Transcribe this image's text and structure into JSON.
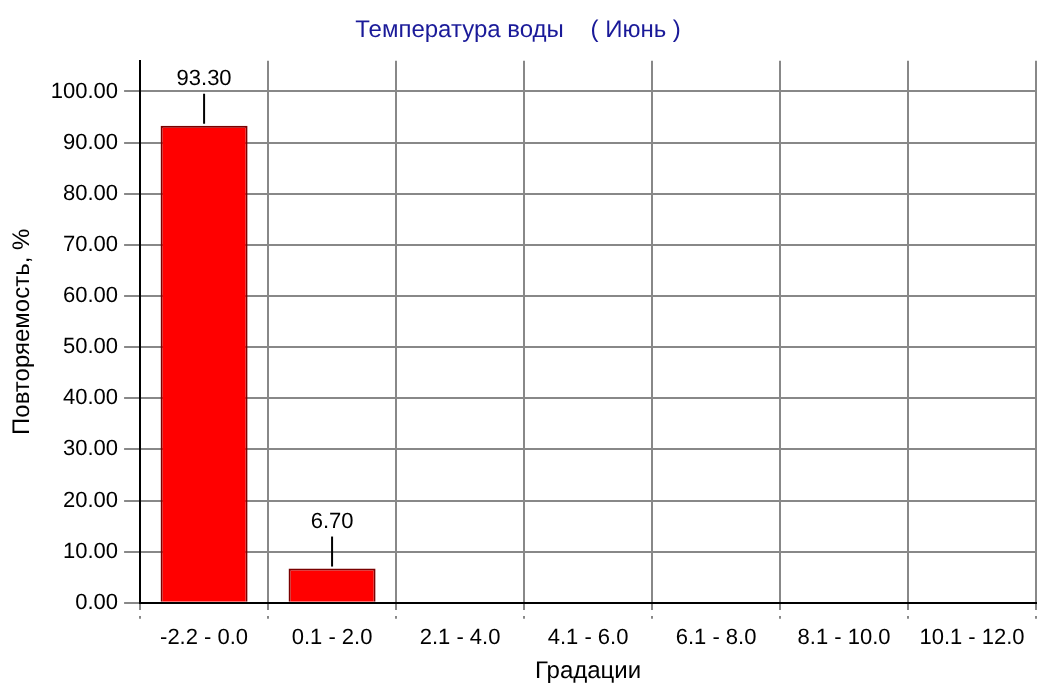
{
  "chart_data": {
    "type": "bar",
    "title": "Температура воды    ( Июнь )",
    "xlabel": "Градации",
    "ylabel": "Повторяемость, %",
    "categories": [
      "-2.2 - 0.0",
      "0.1 - 2.0",
      "2.1 - 4.0",
      "4.1 - 6.0",
      "6.1 - 8.0",
      "8.1 - 10.0",
      "10.1 - 12.0"
    ],
    "values": [
      93.3,
      6.7,
      0,
      0,
      0,
      0,
      0
    ],
    "color": "#ff0000",
    "value_labels": [
      "93.30",
      "6.70",
      null,
      null,
      null,
      null,
      null
    ],
    "ylim": [
      0,
      106
    ],
    "yticks": [
      {
        "value": 0,
        "label": "0.00"
      },
      {
        "value": 10,
        "label": "10.00"
      },
      {
        "value": 20,
        "label": "20.00"
      },
      {
        "value": 30,
        "label": "30.00"
      },
      {
        "value": 40,
        "label": "40.00"
      },
      {
        "value": 50,
        "label": "50.00"
      },
      {
        "value": 60,
        "label": "60.00"
      },
      {
        "value": 70,
        "label": "70.00"
      },
      {
        "value": 80,
        "label": "80.00"
      },
      {
        "value": 90,
        "label": "90.00"
      },
      {
        "value": 100,
        "label": "100.00"
      }
    ],
    "grid": true,
    "legend": false
  }
}
